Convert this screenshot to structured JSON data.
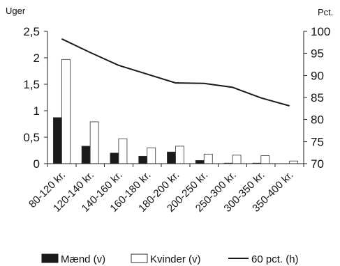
{
  "chart_data": {
    "type": "bar",
    "left_axis_label": "Uger",
    "right_axis_label": "Pct.",
    "categories": [
      "80-120 kr.",
      "120-140 kr.",
      "140-160 kr.",
      "160-180 kr.",
      "180-200 kr.",
      "200-250 kr.",
      "250-300 kr.",
      "300-350 kr.",
      "350-400 kr."
    ],
    "series": [
      {
        "name": "Mænd (v)",
        "type": "bar",
        "axis": "left",
        "color": "#1a1a1a",
        "values": [
          0.87,
          0.33,
          0.2,
          0.14,
          0.22,
          0.06,
          0.01,
          0.01,
          0.0
        ]
      },
      {
        "name": "Kvinder (v)",
        "type": "bar",
        "axis": "left",
        "color": "#ffffff",
        "values": [
          1.97,
          0.79,
          0.47,
          0.3,
          0.33,
          0.18,
          0.16,
          0.15,
          0.05
        ]
      },
      {
        "name": "60 pct. (h)",
        "type": "line",
        "axis": "right",
        "color": "#1a1a1a",
        "values": [
          98.3,
          95.2,
          92.3,
          90.3,
          88.3,
          88.2,
          87.3,
          84.9,
          83.1
        ]
      }
    ],
    "left_axis": {
      "min": 0,
      "max": 2.5,
      "ticks": [
        "0",
        "0,5",
        "1",
        "1,5",
        "2",
        "2,5"
      ]
    },
    "right_axis": {
      "min": 70,
      "max": 100,
      "ticks": [
        "70",
        "75",
        "80",
        "85",
        "90",
        "95",
        "100"
      ]
    },
    "grid": false,
    "legend_position": "bottom"
  }
}
